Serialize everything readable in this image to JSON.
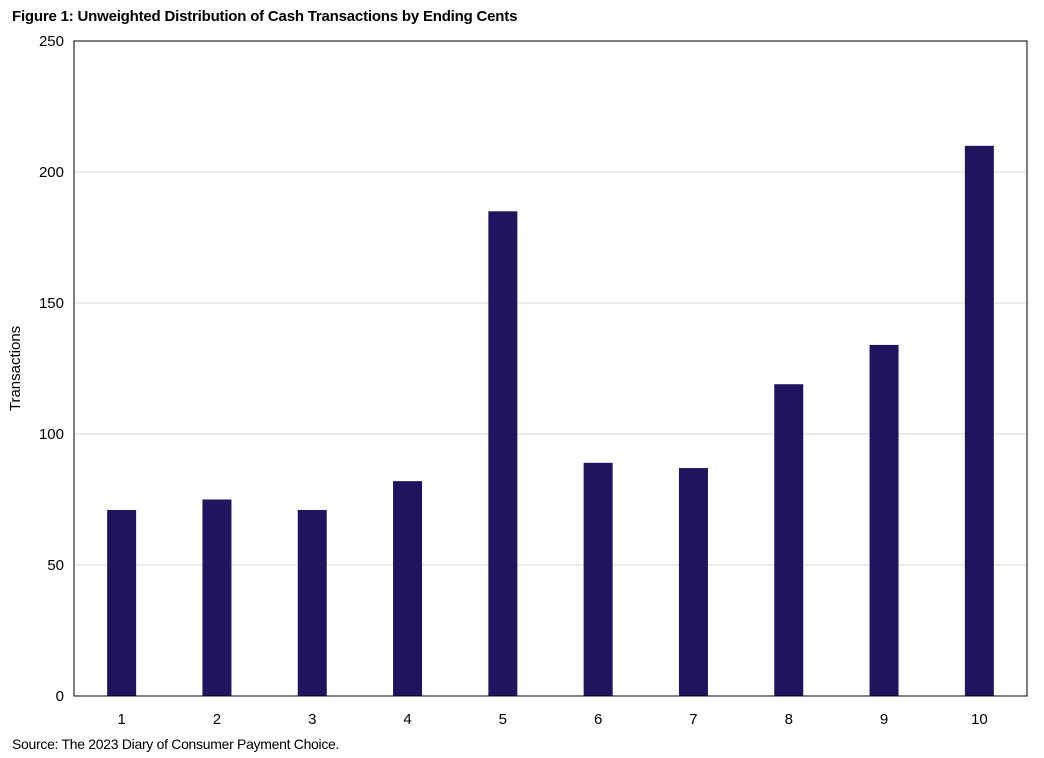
{
  "chart_data": {
    "type": "bar",
    "title": "Figure 1: Unweighted Distribution  of Cash Transactions by Ending Cents",
    "source": "Source: The 2023  Diary of Consumer Payment Choice.",
    "xlabel": "",
    "ylabel": "Transactions",
    "categories": [
      "1",
      "2",
      "3",
      "4",
      "5",
      "6",
      "7",
      "8",
      "9",
      "10"
    ],
    "values": [
      71,
      75,
      71,
      82,
      185,
      89,
      87,
      119,
      134,
      210
    ],
    "ylim": [
      0,
      250
    ],
    "yticks": [
      0,
      50,
      100,
      150,
      200,
      250
    ],
    "grid": true,
    "legend": "none",
    "bar_color": "#21145f",
    "grid_color": "#d9d9d9",
    "frame_color": "#000000"
  }
}
